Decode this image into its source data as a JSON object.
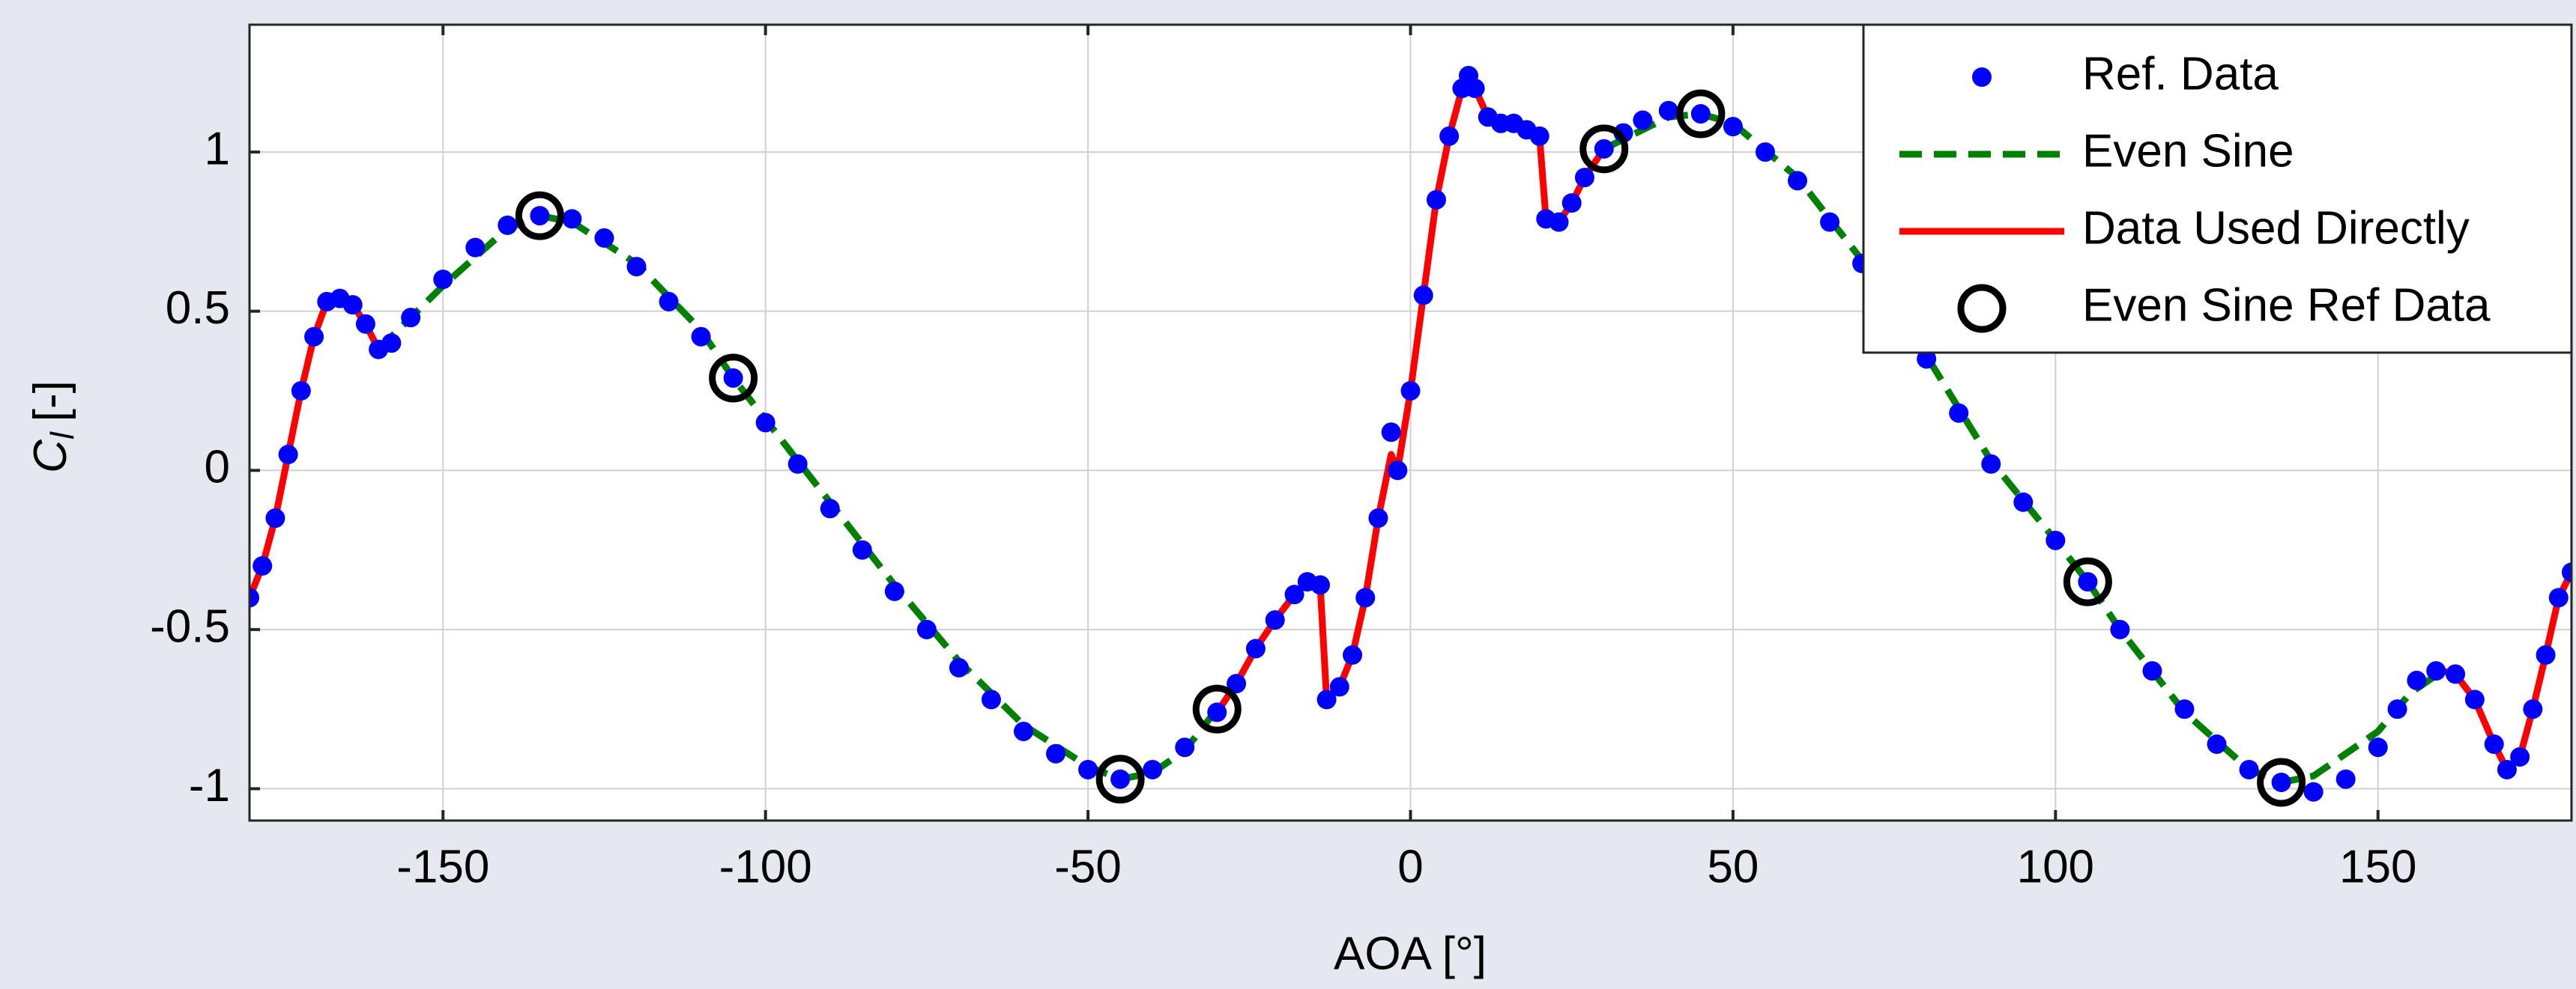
{
  "chart_data": {
    "type": "line",
    "xlabel": "AOA [°]",
    "ylabel": {
      "main": "C",
      "sub": "l",
      "unit": "[-]"
    },
    "xlim": [
      -180,
      180
    ],
    "xticks": [
      -150,
      -100,
      -50,
      0,
      50,
      100,
      150
    ],
    "ylim": [
      -1.1,
      1.4
    ],
    "yticks": [
      -1,
      -0.5,
      0,
      0.5,
      1
    ],
    "grid": true,
    "legend": "northeast",
    "series": [
      {
        "name": "Ref. Data",
        "color": "#0000ff",
        "line": "none",
        "marker": "dot",
        "x": [
          -180,
          -178,
          -176,
          -174,
          -172,
          -170,
          -168,
          -166,
          -164,
          -162,
          -160,
          -158,
          -155,
          -150,
          -145,
          -140,
          -135,
          -130,
          -125,
          -120,
          -115,
          -110,
          -105,
          -100,
          -95,
          -90,
          -85,
          -80,
          -75,
          -70,
          -65,
          -60,
          -55,
          -50,
          -45,
          -40,
          -35,
          -30,
          -27,
          -24,
          -21,
          -18,
          -16,
          -14,
          -13,
          -11,
          -9,
          -7,
          -5,
          -3,
          -2,
          0,
          2,
          4,
          6,
          8,
          9,
          10,
          12,
          14,
          16,
          18,
          20,
          21,
          23,
          25,
          27,
          30,
          33,
          36,
          40,
          45,
          50,
          55,
          60,
          65,
          70,
          75,
          80,
          85,
          90,
          95,
          100,
          105,
          110,
          115,
          120,
          125,
          130,
          135,
          140,
          145,
          150,
          153,
          156,
          159,
          162,
          165,
          168,
          170,
          172,
          174,
          176,
          178,
          180
        ],
        "values": [
          -0.4,
          -0.3,
          -0.15,
          0.05,
          0.25,
          0.42,
          0.53,
          0.54,
          0.52,
          0.46,
          0.38,
          0.4,
          0.48,
          0.6,
          0.7,
          0.77,
          0.8,
          0.79,
          0.73,
          0.64,
          0.53,
          0.42,
          0.29,
          0.15,
          0.02,
          -0.12,
          -0.25,
          -0.38,
          -0.5,
          -0.62,
          -0.72,
          -0.82,
          -0.89,
          -0.94,
          -0.97,
          -0.94,
          -0.87,
          -0.76,
          -0.67,
          -0.56,
          -0.47,
          -0.39,
          -0.35,
          -0.36,
          -0.72,
          -0.68,
          -0.58,
          -0.4,
          -0.15,
          0.12,
          0.0,
          0.25,
          0.55,
          0.85,
          1.05,
          1.2,
          1.24,
          1.2,
          1.11,
          1.09,
          1.09,
          1.07,
          1.05,
          0.79,
          0.78,
          0.84,
          0.92,
          1.01,
          1.06,
          1.1,
          1.13,
          1.12,
          1.08,
          1.0,
          0.91,
          0.78,
          0.65,
          0.5,
          0.35,
          0.18,
          0.02,
          -0.1,
          -0.22,
          -0.35,
          -0.5,
          -0.63,
          -0.75,
          -0.86,
          -0.94,
          -0.98,
          -1.01,
          -0.97,
          -0.87,
          -0.75,
          -0.66,
          -0.63,
          -0.64,
          -0.72,
          -0.86,
          -0.94,
          -0.9,
          -0.75,
          -0.58,
          -0.4,
          -0.32
        ]
      },
      {
        "name": "Even Sine",
        "color": "#008000",
        "line": "dashed",
        "marker": "none",
        "x": [
          -160,
          -150,
          -140,
          -135,
          -130,
          -120,
          -110,
          -105,
          -100,
          -90,
          -80,
          -70,
          -60,
          -50,
          -45,
          -40,
          -35,
          -30,
          0,
          30,
          40,
          45,
          50,
          60,
          70,
          80,
          90,
          100,
          105,
          110,
          120,
          130,
          135,
          140,
          150,
          155,
          160
        ],
        "values": [
          0.38,
          0.58,
          0.76,
          0.8,
          0.78,
          0.65,
          0.44,
          0.29,
          0.16,
          -0.1,
          -0.36,
          -0.6,
          -0.8,
          -0.93,
          -0.97,
          -0.95,
          -0.88,
          -0.75,
          null,
          1.01,
          1.11,
          1.12,
          1.09,
          0.92,
          0.66,
          0.36,
          0.03,
          -0.22,
          -0.35,
          -0.5,
          -0.76,
          -0.94,
          -0.98,
          -0.96,
          -0.82,
          -0.7,
          -0.63
        ]
      },
      {
        "name": "Data Used Directly",
        "color": "#ff0000",
        "line": "solid",
        "marker": "none",
        "x": [
          -180,
          -178,
          -176,
          -174,
          -172,
          -170,
          -168,
          -166,
          -164,
          -162,
          -160,
          -100,
          -30,
          -27,
          -24,
          -21,
          -18,
          -16,
          -14,
          -13,
          -11,
          -9,
          -7,
          -5,
          -3,
          -2,
          0,
          2,
          4,
          6,
          8,
          9,
          10,
          12,
          14,
          16,
          18,
          20,
          21,
          23,
          25,
          27,
          30,
          100,
          160,
          162,
          165,
          168,
          170,
          172,
          174,
          176,
          178,
          180
        ],
        "values": [
          -0.4,
          -0.3,
          -0.15,
          0.05,
          0.25,
          0.42,
          0.53,
          0.54,
          0.52,
          0.46,
          0.38,
          null,
          -0.76,
          -0.67,
          -0.56,
          -0.47,
          -0.39,
          -0.35,
          -0.36,
          -0.72,
          -0.68,
          -0.58,
          -0.4,
          -0.15,
          0.05,
          0.0,
          0.25,
          0.55,
          0.85,
          1.05,
          1.2,
          1.24,
          1.2,
          1.11,
          1.09,
          1.09,
          1.07,
          1.05,
          0.79,
          0.78,
          0.84,
          0.92,
          1.01,
          null,
          -0.63,
          -0.64,
          -0.72,
          -0.86,
          -0.94,
          -0.9,
          -0.75,
          -0.58,
          -0.4,
          -0.32
        ]
      },
      {
        "name": "Even Sine Ref Data",
        "color": "#000000",
        "line": "none",
        "marker": "circle",
        "x": [
          -135,
          -105,
          -45,
          -30,
          30,
          45,
          105,
          135
        ],
        "values": [
          0.8,
          0.29,
          -0.97,
          -0.75,
          1.01,
          1.12,
          -0.35,
          -0.98
        ]
      }
    ]
  }
}
